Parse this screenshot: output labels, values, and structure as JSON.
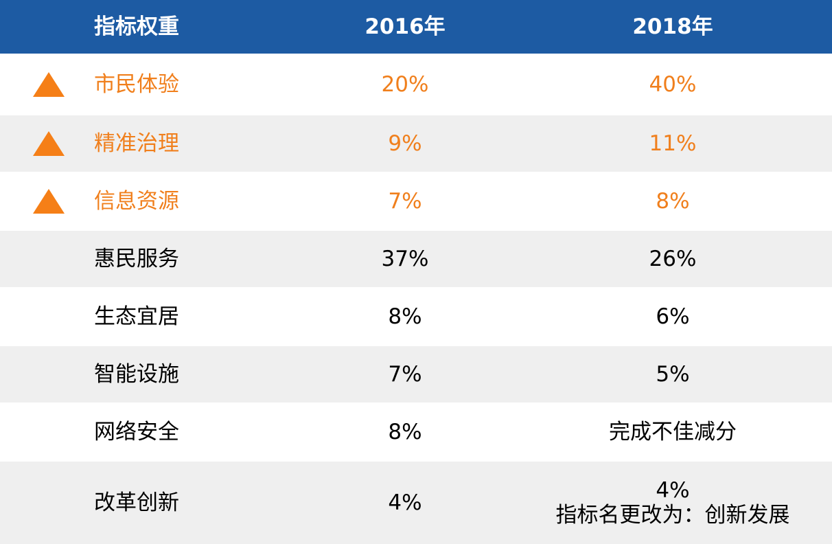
{
  "table": {
    "header": [
      "指标权重",
      "2016年",
      "2018年"
    ],
    "rows": [
      [
        "市民体验",
        "20%",
        "40%"
      ],
      [
        "精准治理",
        "9%",
        "11%"
      ],
      [
        "信息资源",
        "7%",
        "8%"
      ],
      [
        "惠民服务",
        "37%",
        "26%"
      ],
      [
        "生态宜居",
        "8%",
        "6%"
      ],
      [
        "智能设施",
        "7%",
        "5%"
      ],
      [
        "网络安全",
        "8%",
        "完成不佳减分"
      ],
      [
        "改革创新",
        "4%",
        [
          "4%",
          "指标名更改为：创新发展"
        ]
      ]
    ]
  }
}
